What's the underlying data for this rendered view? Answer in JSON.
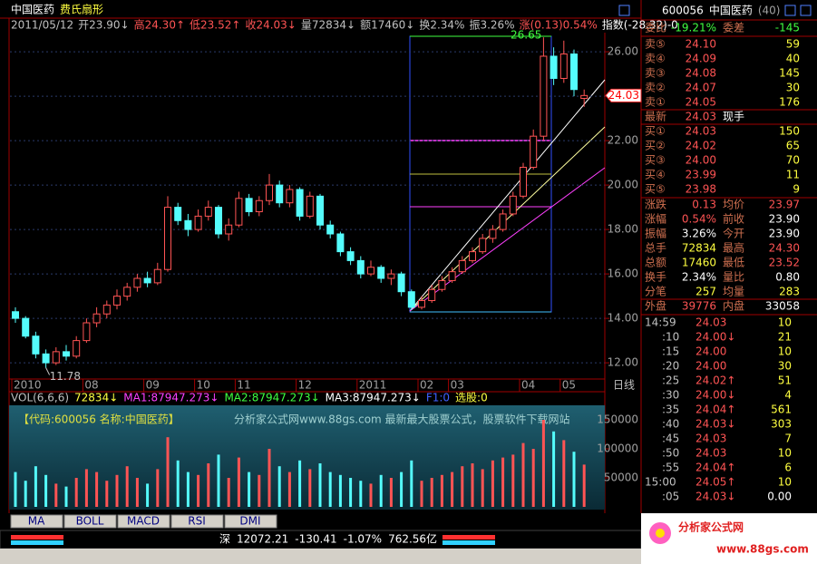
{
  "title_bar": {
    "stock": "中国医药",
    "tool": "费氏扇形"
  },
  "info_line": [
    "2011/05/12",
    "开23.90↓",
    "高24.30↑",
    "低23.52↑",
    "收24.03↓",
    "量72834↓",
    "额17460↓",
    "换2.34%",
    "振3.26%",
    "涨(0.13)0.54%",
    "指数(-28.32)-0"
  ],
  "chart_data": [
    {
      "type": "candlestick",
      "up_color": "#ff5454",
      "down_color": "#54fcfc",
      "categories": [
        "2010",
        null,
        null,
        null,
        null,
        null,
        null,
        "08",
        null,
        null,
        null,
        null,
        null,
        "09",
        null,
        null,
        null,
        null,
        "10",
        null,
        null,
        null,
        "11",
        null,
        null,
        null,
        null,
        null,
        "12",
        null,
        null,
        null,
        null,
        null,
        "2011",
        null,
        null,
        null,
        null,
        null,
        "02",
        null,
        null,
        "03",
        null,
        null,
        null,
        null,
        null,
        null,
        "04",
        null,
        null,
        null,
        "05",
        null,
        null
      ],
      "ohlc": [
        [
          14.3,
          14.5,
          13.8,
          14.0
        ],
        [
          14.0,
          14.1,
          13.1,
          13.2
        ],
        [
          13.2,
          13.4,
          12.2,
          12.4
        ],
        [
          12.4,
          12.6,
          11.78,
          12.0
        ],
        [
          12.0,
          12.7,
          11.9,
          12.5
        ],
        [
          12.5,
          12.8,
          12.1,
          12.3
        ],
        [
          12.3,
          13.2,
          12.2,
          13.0
        ],
        [
          13.0,
          14.0,
          12.9,
          13.8
        ],
        [
          13.8,
          14.5,
          13.6,
          14.2
        ],
        [
          14.2,
          14.8,
          14.0,
          14.6
        ],
        [
          14.6,
          15.3,
          14.4,
          15.0
        ],
        [
          15.0,
          15.6,
          14.8,
          15.4
        ],
        [
          15.4,
          16.0,
          15.2,
          15.8
        ],
        [
          15.8,
          16.1,
          15.4,
          15.6
        ],
        [
          15.6,
          16.5,
          15.5,
          16.2
        ],
        [
          16.2,
          19.5,
          16.1,
          19.0
        ],
        [
          19.0,
          19.2,
          18.2,
          18.4
        ],
        [
          18.4,
          18.7,
          17.7,
          18.0
        ],
        [
          18.0,
          18.9,
          17.9,
          18.6
        ],
        [
          18.6,
          19.3,
          18.4,
          19.0
        ],
        [
          19.0,
          19.1,
          17.6,
          17.8
        ],
        [
          17.8,
          18.5,
          17.5,
          18.2
        ],
        [
          18.2,
          19.7,
          18.1,
          19.4
        ],
        [
          19.4,
          19.6,
          18.6,
          18.8
        ],
        [
          18.8,
          19.5,
          18.6,
          19.3
        ],
        [
          19.3,
          20.5,
          19.1,
          20.0
        ],
        [
          20.0,
          20.2,
          19.0,
          19.2
        ],
        [
          19.2,
          20.0,
          19.0,
          19.8
        ],
        [
          19.8,
          19.9,
          18.4,
          18.6
        ],
        [
          18.6,
          19.7,
          18.5,
          19.5
        ],
        [
          19.5,
          19.6,
          18.0,
          18.2
        ],
        [
          18.2,
          18.4,
          17.6,
          17.8
        ],
        [
          17.8,
          17.9,
          16.8,
          17.0
        ],
        [
          17.0,
          17.2,
          16.4,
          16.6
        ],
        [
          16.6,
          16.8,
          15.8,
          16.0
        ],
        [
          16.0,
          16.6,
          15.9,
          16.3
        ],
        [
          16.3,
          16.4,
          15.6,
          15.8
        ],
        [
          15.8,
          16.2,
          15.5,
          16.0
        ],
        [
          16.0,
          16.1,
          15.0,
          15.2
        ],
        [
          15.2,
          15.3,
          14.37,
          14.5
        ],
        [
          14.5,
          15.0,
          14.4,
          14.8
        ],
        [
          14.8,
          15.5,
          14.7,
          15.3
        ],
        [
          15.3,
          15.9,
          15.2,
          15.7
        ],
        [
          15.7,
          16.3,
          15.6,
          16.1
        ],
        [
          16.1,
          16.8,
          16.0,
          16.6
        ],
        [
          16.6,
          17.2,
          16.5,
          17.0
        ],
        [
          17.0,
          17.8,
          16.9,
          17.6
        ],
        [
          17.6,
          18.2,
          17.4,
          18.0
        ],
        [
          18.0,
          18.9,
          17.9,
          18.7
        ],
        [
          18.7,
          19.7,
          18.6,
          19.5
        ],
        [
          19.5,
          21.0,
          19.4,
          20.8
        ],
        [
          20.8,
          22.5,
          20.7,
          22.2
        ],
        [
          22.2,
          26.65,
          22.0,
          25.8
        ],
        [
          25.8,
          26.2,
          24.5,
          24.8
        ],
        [
          24.8,
          26.5,
          24.6,
          25.9
        ],
        [
          25.9,
          26.1,
          24.0,
          24.3
        ],
        [
          23.9,
          24.3,
          23.52,
          24.03
        ]
      ],
      "ylim": [
        11.27,
        26.86
      ],
      "yticks": [
        {
          "value": 12,
          "label": "12.00"
        },
        {
          "value": 14,
          "label": "14.00"
        },
        {
          "value": 16,
          "label": "16.00"
        },
        {
          "value": 18,
          "label": "18.00"
        },
        {
          "value": 20,
          "label": "20.00"
        },
        {
          "value": 22,
          "label": "22.00"
        },
        {
          "value": 24,
          "label": "24.00"
        },
        {
          "value": 26,
          "label": "26.00"
        }
      ],
      "grid": true,
      "low_label": 11.78,
      "high_label": 26.65,
      "last_label": 24.03,
      "period_label": "日线"
    },
    {
      "type": "bar",
      "header": [
        "VOL(6,6,6)",
        "72834↓",
        "MA1:87947.273↓",
        "MA2:87947.273↓",
        "MA3:87947.273↓",
        "F1:0",
        "选股:0"
      ],
      "banner": [
        "【代码:600056 名称:中国医药】",
        "分析家公式网www.88gs.com 最新最大股票公式，股票软件下载网站"
      ],
      "values": [
        60000,
        45000,
        70000,
        55000,
        40000,
        35000,
        50000,
        65000,
        60000,
        45000,
        55000,
        70000,
        50000,
        40000,
        65000,
        120000,
        80000,
        60000,
        55000,
        75000,
        90000,
        50000,
        85000,
        60000,
        55000,
        100000,
        70000,
        60000,
        80000,
        65000,
        75000,
        60000,
        55000,
        50000,
        45000,
        40000,
        55000,
        50000,
        60000,
        80000,
        45000,
        50000,
        55000,
        60000,
        70000,
        75000,
        65000,
        80000,
        85000,
        90000,
        110000,
        100000,
        150000,
        130000,
        115000,
        95000,
        72834
      ],
      "ylim": [
        0,
        175000
      ],
      "yticks": [
        50000,
        100000,
        150000
      ]
    }
  ],
  "tabs": [
    "MA",
    "BOLL",
    "MACD",
    "RSI",
    "DMI"
  ],
  "status_bar": [
    "深",
    "12072.21",
    "-130.41",
    "-1.07%",
    "762.56亿"
  ],
  "panel": {
    "header": [
      "600056",
      "中国医药",
      "(40)"
    ],
    "ratio": [
      "委比",
      "-19.21%",
      "委差",
      "-145"
    ],
    "sell": [
      [
        "卖⑤",
        "24.10",
        "59"
      ],
      [
        "卖④",
        "24.09",
        "40"
      ],
      [
        "卖③",
        "24.08",
        "145"
      ],
      [
        "卖②",
        "24.07",
        "30"
      ],
      [
        "卖①",
        "24.05",
        "176"
      ]
    ],
    "last": [
      "最新",
      "24.03",
      "现手"
    ],
    "buy": [
      [
        "买①",
        "24.03",
        "150"
      ],
      [
        "买②",
        "24.02",
        "65"
      ],
      [
        "买③",
        "24.00",
        "70"
      ],
      [
        "买④",
        "23.99",
        "11"
      ],
      [
        "买⑤",
        "23.98",
        "9"
      ]
    ],
    "stats": [
      [
        "涨跌",
        "0.13",
        "均价",
        "23.97"
      ],
      [
        "涨幅",
        "0.54%",
        "前收",
        "23.90"
      ],
      [
        "振幅",
        "3.26%",
        "今开",
        "23.90"
      ],
      [
        "总手",
        "72834",
        "最高",
        "24.30"
      ],
      [
        "总额",
        "17460",
        "最低",
        "23.52"
      ],
      [
        "换手",
        "2.34%",
        "量比",
        "0.80"
      ],
      [
        "分笔",
        "257",
        "均量",
        "283"
      ]
    ],
    "outer": [
      "外盘",
      "39776",
      "内盘",
      "33058"
    ],
    "ticks": [
      [
        "14:59",
        "24.03",
        "10"
      ],
      [
        ":10",
        "24.00↓",
        "21"
      ],
      [
        ":15",
        "24.00",
        "10"
      ],
      [
        ":20",
        "24.00",
        "30"
      ],
      [
        ":25",
        "24.02↑",
        "51"
      ],
      [
        ":30",
        "24.00↓",
        "4"
      ],
      [
        ":35",
        "24.04↑",
        "561"
      ],
      [
        ":40",
        "24.03↓",
        "303"
      ],
      [
        ":45",
        "24.03",
        "7"
      ],
      [
        ":50",
        "24.03",
        "10"
      ],
      [
        ":55",
        "24.04↑",
        "6"
      ],
      [
        "15:00",
        "24.05↑",
        "10"
      ],
      [
        ":05",
        "24.03↓",
        "0.00"
      ]
    ]
  },
  "logo": [
    "分析家公式网",
    "www.88gs.com"
  ]
}
